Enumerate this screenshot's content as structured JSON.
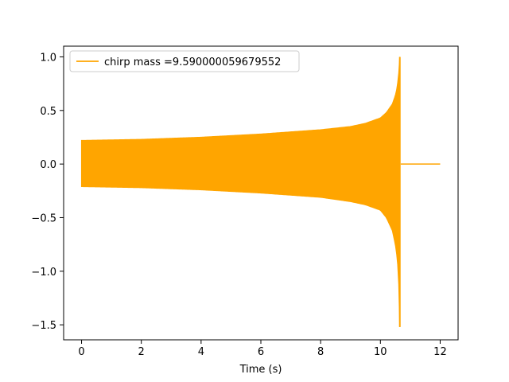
{
  "chart_data": {
    "type": "line",
    "title": "",
    "xlabel": "Time (s)",
    "ylabel": "",
    "xlim": [
      -0.6,
      12.6
    ],
    "ylim": [
      -1.64,
      1.1
    ],
    "xticks": [
      0,
      2,
      4,
      6,
      8,
      10,
      12
    ],
    "xtick_labels": [
      "0",
      "2",
      "4",
      "6",
      "8",
      "10",
      "12"
    ],
    "yticks": [
      1.0,
      0.5,
      0.0,
      -0.5,
      -1.0,
      -1.5
    ],
    "ytick_labels": [
      "1.0",
      "0.5",
      "0.0",
      "−0.5",
      "−1.0",
      "−1.5"
    ],
    "grid": false,
    "legend_position": "upper-left",
    "series": [
      {
        "name": "chirp mass =9.590000059679552",
        "color": "#ffa500",
        "envelope": {
          "x": [
            0,
            2,
            4,
            6,
            8,
            9,
            9.5,
            10,
            10.2,
            10.4,
            10.5,
            10.55,
            10.6,
            10.63,
            10.65
          ],
          "upper": [
            0.22,
            0.23,
            0.25,
            0.28,
            0.32,
            0.35,
            0.38,
            0.43,
            0.48,
            0.56,
            0.64,
            0.7,
            0.8,
            0.9,
            1.0
          ],
          "lower": [
            -0.21,
            -0.22,
            -0.24,
            -0.27,
            -0.31,
            -0.35,
            -0.38,
            -0.43,
            -0.5,
            -0.62,
            -0.75,
            -0.85,
            -1.0,
            -1.25,
            -1.52
          ]
        },
        "tail": {
          "x": [
            10.68,
            12.0
          ],
          "y": [
            0.0,
            0.0
          ]
        }
      }
    ]
  }
}
